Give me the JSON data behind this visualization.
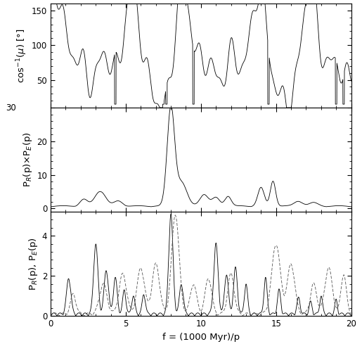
{
  "xlabel": "f = (1000 Myr)/p",
  "xlim": [
    0,
    20
  ],
  "panel1_ylim": [
    10,
    160
  ],
  "panel1_yticks": [
    50,
    100,
    150
  ],
  "panel2_ylim": [
    -1,
    30
  ],
  "panel2_yticks": [
    0,
    10,
    20,
    30
  ],
  "panel3_ylim": [
    0,
    5.2
  ],
  "panel3_yticks": [
    0,
    2,
    4
  ],
  "xticks": [
    0,
    5,
    10,
    15,
    20
  ],
  "line_color": "#000000",
  "bg_color": "#ffffff",
  "tick_label_fontsize": 8.5,
  "axis_label_fontsize": 9.5,
  "lw1": 0.6,
  "lw2": 0.6,
  "lw3": 0.6
}
